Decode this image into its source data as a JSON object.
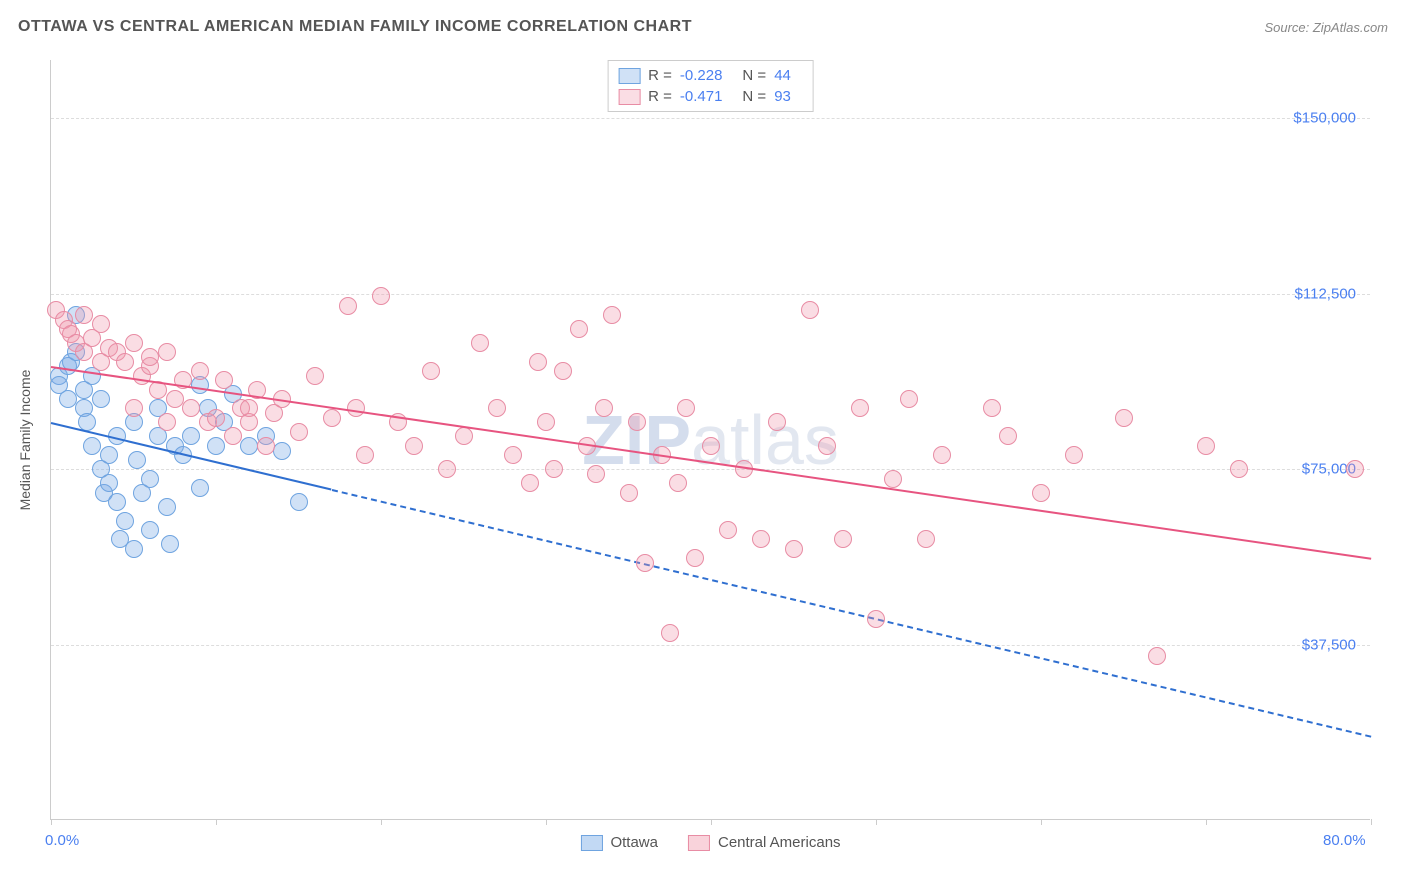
{
  "title": "OTTAWA VS CENTRAL AMERICAN MEDIAN FAMILY INCOME CORRELATION CHART",
  "source": "Source: ZipAtlas.com",
  "watermark_left": "ZIP",
  "watermark_right": "atlas",
  "y_axis_label": "Median Family Income",
  "chart": {
    "type": "scatter",
    "xlim": [
      0,
      80
    ],
    "ylim": [
      0,
      162500
    ],
    "x_ticks": [
      0,
      10,
      20,
      30,
      40,
      50,
      60,
      70,
      80
    ],
    "x_tick_labels": {
      "0": "0.0%",
      "80": "80.0%"
    },
    "y_gridlines": [
      37500,
      75000,
      112500,
      150000
    ],
    "y_tick_labels": [
      "$37,500",
      "$75,000",
      "$112,500",
      "$150,000"
    ],
    "background_color": "#ffffff",
    "grid_color": "#dddddd",
    "axis_color": "#cccccc",
    "tick_label_color": "#4a7ff0",
    "marker_radius": 9,
    "marker_stroke_width": 1.2,
    "series": [
      {
        "name": "Ottawa",
        "fill": "rgba(120,170,230,0.35)",
        "stroke": "#6fa4e0",
        "trend_color": "#2f6fd0",
        "trend_width": 2,
        "trend_solid_end_x": 17,
        "trend": {
          "x1": 0,
          "y1": 85000,
          "x2": 80,
          "y2": 18000
        },
        "R_label": "R =",
        "R": "-0.228",
        "N_label": "N =",
        "N": "44",
        "points": [
          [
            0.5,
            95000
          ],
          [
            0.5,
            93000
          ],
          [
            1,
            97000
          ],
          [
            1,
            90000
          ],
          [
            1.2,
            98000
          ],
          [
            1.5,
            100000
          ],
          [
            1.5,
            108000
          ],
          [
            2,
            88000
          ],
          [
            2,
            92000
          ],
          [
            2.2,
            85000
          ],
          [
            2.5,
            95000
          ],
          [
            2.5,
            80000
          ],
          [
            3,
            90000
          ],
          [
            3,
            75000
          ],
          [
            3.2,
            70000
          ],
          [
            3.5,
            78000
          ],
          [
            3.5,
            72000
          ],
          [
            4,
            82000
          ],
          [
            4,
            68000
          ],
          [
            4.2,
            60000
          ],
          [
            4.5,
            64000
          ],
          [
            5,
            58000
          ],
          [
            5,
            85000
          ],
          [
            5.2,
            77000
          ],
          [
            5.5,
            70000
          ],
          [
            6,
            73000
          ],
          [
            6,
            62000
          ],
          [
            6.5,
            88000
          ],
          [
            6.5,
            82000
          ],
          [
            7,
            67000
          ],
          [
            7.2,
            59000
          ],
          [
            7.5,
            80000
          ],
          [
            8,
            78000
          ],
          [
            8.5,
            82000
          ],
          [
            9,
            71000
          ],
          [
            9,
            93000
          ],
          [
            9.5,
            88000
          ],
          [
            10,
            80000
          ],
          [
            10.5,
            85000
          ],
          [
            11,
            91000
          ],
          [
            12,
            80000
          ],
          [
            13,
            82000
          ],
          [
            14,
            79000
          ],
          [
            15,
            68000
          ]
        ]
      },
      {
        "name": "Central Americans",
        "fill": "rgba(240,150,170,0.32)",
        "stroke": "#e88ca4",
        "trend_color": "#e75480",
        "trend_width": 2,
        "trend_solid_end_x": 80,
        "trend": {
          "x1": 0,
          "y1": 97000,
          "x2": 80,
          "y2": 56000
        },
        "R_label": "R =",
        "R": "-0.471",
        "N_label": "N =",
        "N": "93",
        "points": [
          [
            0.3,
            109000
          ],
          [
            0.8,
            107000
          ],
          [
            1,
            105000
          ],
          [
            1.2,
            104000
          ],
          [
            1.5,
            102000
          ],
          [
            2,
            108000
          ],
          [
            2,
            100000
          ],
          [
            2.5,
            103000
          ],
          [
            3,
            106000
          ],
          [
            3,
            98000
          ],
          [
            3.5,
            101000
          ],
          [
            4,
            100000
          ],
          [
            4.5,
            98000
          ],
          [
            5,
            102000
          ],
          [
            5,
            88000
          ],
          [
            5.5,
            95000
          ],
          [
            6,
            97000
          ],
          [
            6.5,
            92000
          ],
          [
            7,
            100000
          ],
          [
            7,
            85000
          ],
          [
            7.5,
            90000
          ],
          [
            8,
            94000
          ],
          [
            8.5,
            88000
          ],
          [
            9,
            96000
          ],
          [
            9.5,
            85000
          ],
          [
            10,
            86000
          ],
          [
            10.5,
            94000
          ],
          [
            11,
            82000
          ],
          [
            11.5,
            88000
          ],
          [
            12,
            85000
          ],
          [
            12.5,
            92000
          ],
          [
            13,
            80000
          ],
          [
            13.5,
            87000
          ],
          [
            14,
            90000
          ],
          [
            15,
            83000
          ],
          [
            16,
            95000
          ],
          [
            17,
            86000
          ],
          [
            18,
            110000
          ],
          [
            18.5,
            88000
          ],
          [
            19,
            78000
          ],
          [
            20,
            112000
          ],
          [
            21,
            85000
          ],
          [
            22,
            80000
          ],
          [
            23,
            96000
          ],
          [
            24,
            75000
          ],
          [
            25,
            82000
          ],
          [
            26,
            102000
          ],
          [
            27,
            88000
          ],
          [
            28,
            78000
          ],
          [
            29,
            72000
          ],
          [
            29.5,
            98000
          ],
          [
            30,
            85000
          ],
          [
            30.5,
            75000
          ],
          [
            31,
            96000
          ],
          [
            32,
            105000
          ],
          [
            32.5,
            80000
          ],
          [
            33,
            74000
          ],
          [
            33.5,
            88000
          ],
          [
            34,
            108000
          ],
          [
            35,
            70000
          ],
          [
            35.5,
            85000
          ],
          [
            36,
            55000
          ],
          [
            37,
            78000
          ],
          [
            37.5,
            40000
          ],
          [
            38,
            72000
          ],
          [
            38.5,
            88000
          ],
          [
            39,
            56000
          ],
          [
            40,
            80000
          ],
          [
            41,
            62000
          ],
          [
            42,
            75000
          ],
          [
            43,
            60000
          ],
          [
            44,
            85000
          ],
          [
            45,
            58000
          ],
          [
            46,
            109000
          ],
          [
            47,
            80000
          ],
          [
            48,
            60000
          ],
          [
            49,
            88000
          ],
          [
            50,
            43000
          ],
          [
            51,
            73000
          ],
          [
            52,
            90000
          ],
          [
            53,
            60000
          ],
          [
            54,
            78000
          ],
          [
            57,
            88000
          ],
          [
            58,
            82000
          ],
          [
            60,
            70000
          ],
          [
            62,
            78000
          ],
          [
            65,
            86000
          ],
          [
            67,
            35000
          ],
          [
            70,
            80000
          ],
          [
            72,
            75000
          ],
          [
            79,
            75000
          ],
          [
            12,
            88000
          ],
          [
            6,
            99000
          ]
        ]
      }
    ]
  },
  "legend_bottom": [
    {
      "label": "Ottawa",
      "fill": "rgba(120,170,230,0.45)",
      "stroke": "#6fa4e0"
    },
    {
      "label": "Central Americans",
      "fill": "rgba(240,150,170,0.42)",
      "stroke": "#e88ca4"
    }
  ]
}
